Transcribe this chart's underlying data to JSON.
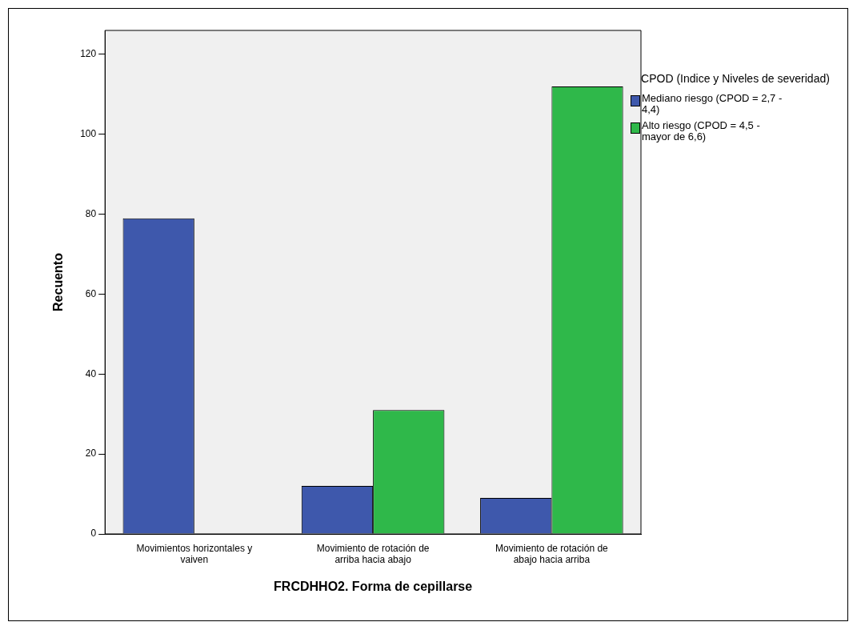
{
  "chart_data": {
    "type": "bar",
    "xlabel": "FRCDHHO2. Forma de cepillarse",
    "ylabel": "Recuento",
    "legend_title": "CPOD (Indice y Niveles de severidad)",
    "categories": [
      "Movimientos horizontales y vaiven",
      "Movimiento de rotación de arriba hacia abajo",
      "Movimiento de rotación de abajo hacia arriba"
    ],
    "series": [
      {
        "name": "Mediano riesgo (CPOD = 2,7 - 4,4)",
        "color": "#3e58ac",
        "values": [
          79,
          12,
          9
        ]
      },
      {
        "name": "Alto riesgo (CPOD = 4,5 - mayor de 6,6)",
        "color": "#2fb84a",
        "values": [
          0,
          31,
          112
        ]
      }
    ],
    "ylim": [
      0,
      126
    ],
    "yticks": [
      0,
      20,
      40,
      60,
      80,
      100,
      120
    ],
    "grid": false,
    "legend": "right"
  }
}
